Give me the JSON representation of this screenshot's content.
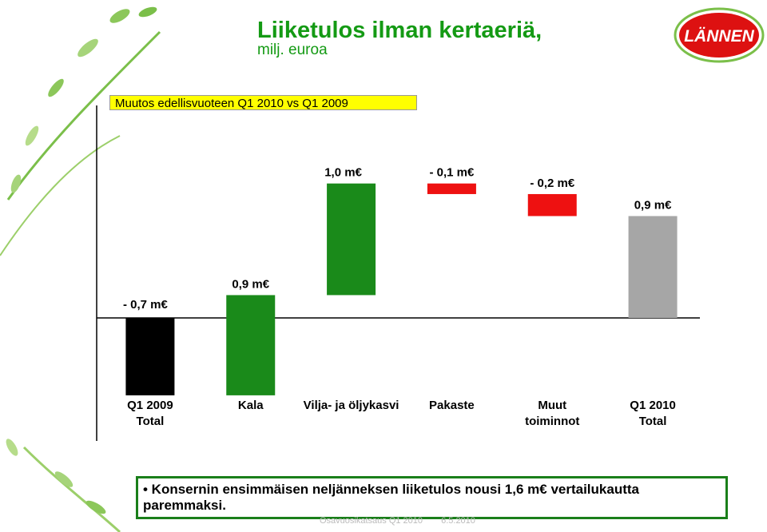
{
  "slide": {
    "title": "Liiketulos ilman kertaeriä,",
    "subtitle": "milj. euroa",
    "legend_text": "Muutos edellisvuoteen Q1 2010 vs Q1 2009",
    "logo_text": "LÄNNEN",
    "note_text": "• Konsernin ensimmäisen neljänneksen liiketulos nousi 1,6 m€ vertailukautta paremmaksi.",
    "footer_left": "Osavuosikatsaus Q1 2010",
    "footer_right": "6.5.2010"
  },
  "colors": {
    "title": "#149a14",
    "green": "#1a8a1a",
    "red": "#ee1111",
    "black": "#000000",
    "gray": "#a6a6a6",
    "legend_bg": "#ffff00",
    "logo_red": "#dd1111"
  },
  "chart_data": {
    "type": "bar",
    "subtype": "waterfall",
    "categories": [
      "Q1 2009\nTotal",
      "Kala",
      "Vilja- ja öljykasvi",
      "Pakaste",
      "Muut\ntoiminnot",
      "Q1 2010\nTotal"
    ],
    "values": [
      -0.7,
      0.9,
      1.0,
      -0.1,
      -0.2,
      0.9
    ],
    "labels": [
      "- 0,7 m€",
      "0,9 m€",
      "1,0 m€",
      "- 0,1 m€",
      "- 0,2 m€",
      "0,9 m€"
    ],
    "bar_colors": [
      "black",
      "green",
      "green",
      "red",
      "red",
      "gray"
    ],
    "ylim": [
      -0.7,
      1.2
    ],
    "grid": false,
    "legend": "top-left"
  }
}
